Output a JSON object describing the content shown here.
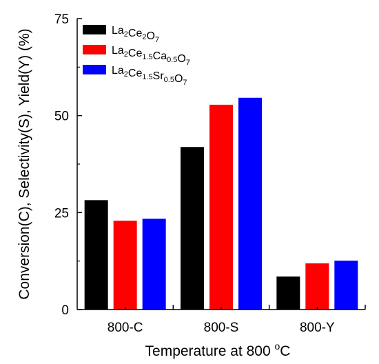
{
  "chart_data": {
    "type": "bar",
    "categories": [
      "800-C",
      "800-S",
      "800-Y"
    ],
    "series": [
      {
        "name": "La2Ce2O7",
        "label_parts": [
          [
            "La",
            ""
          ],
          [
            "2",
            "sub"
          ],
          [
            "Ce",
            ""
          ],
          [
            "2",
            "sub"
          ],
          [
            "O",
            ""
          ],
          [
            "7",
            "sub"
          ]
        ],
        "color": "#000000",
        "values": [
          28.2,
          41.9,
          8.5
        ]
      },
      {
        "name": "La2Ce1.5Ca0.5O7",
        "label_parts": [
          [
            "La",
            ""
          ],
          [
            "2",
            "sub"
          ],
          [
            "Ce",
            ""
          ],
          [
            "1.5",
            "sub"
          ],
          [
            "Ca",
            ""
          ],
          [
            "0.5",
            "sub"
          ],
          [
            "O",
            ""
          ],
          [
            "7",
            "sub"
          ]
        ],
        "color": "#ff0000",
        "values": [
          22.9,
          52.8,
          11.9
        ]
      },
      {
        "name": "La2Ce1.5Sr0.5O7",
        "label_parts": [
          [
            "La",
            ""
          ],
          [
            "2",
            "sub"
          ],
          [
            "Ce",
            ""
          ],
          [
            "1.5",
            "sub"
          ],
          [
            "Sr",
            ""
          ],
          [
            "0.5",
            "sub"
          ],
          [
            "O",
            ""
          ],
          [
            "7",
            "sub"
          ]
        ],
        "color": "#0000ff",
        "values": [
          23.4,
          54.6,
          12.6
        ]
      }
    ],
    "xlabel": "Temperature at 800 °C",
    "ylabel": "Conversion(C), Selectivity(S), Yield(Y) (%)",
    "ylim": [
      0,
      75
    ],
    "yticks": [
      0,
      25,
      50,
      75
    ],
    "grid": false,
    "legend_position": "top-left"
  }
}
